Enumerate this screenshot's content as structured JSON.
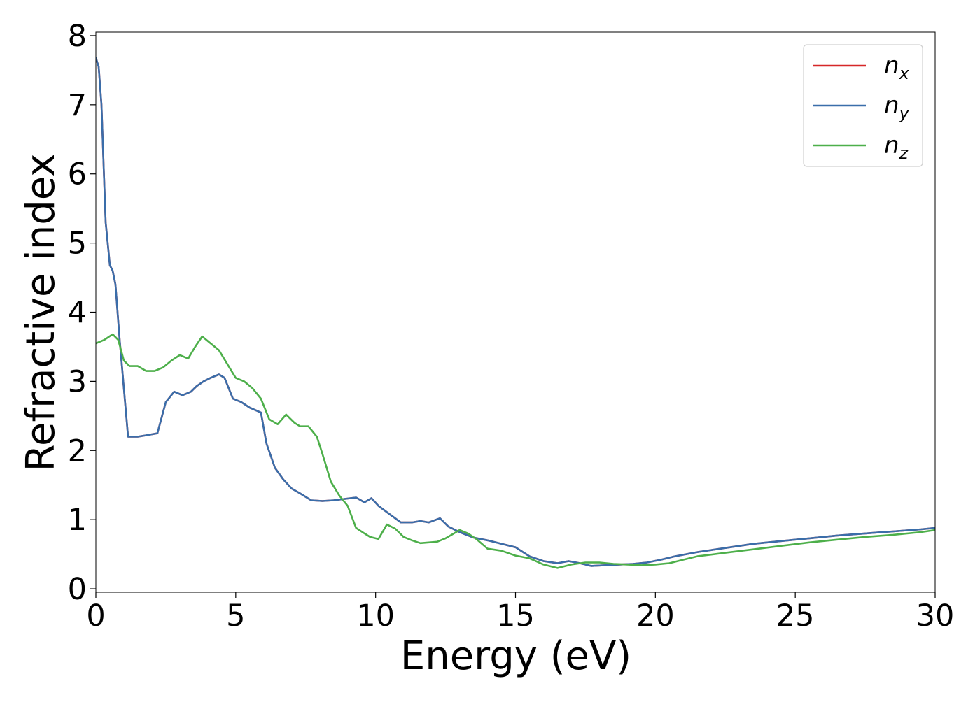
{
  "chart_data": {
    "type": "line",
    "xlabel": "Energy (eV)",
    "ylabel": "Refractive index",
    "xlim": [
      0,
      30
    ],
    "ylim": [
      -0.05,
      8.05
    ],
    "xticks": [
      0,
      5,
      10,
      15,
      20,
      25,
      30
    ],
    "yticks": [
      0,
      1,
      2,
      3,
      4,
      5,
      6,
      7,
      8
    ],
    "xtick_labels": [
      "0",
      "5",
      "10",
      "15",
      "20",
      "25",
      "30"
    ],
    "ytick_labels": [
      "0",
      "1",
      "2",
      "3",
      "4",
      "5",
      "6",
      "7",
      "8"
    ],
    "grid": false,
    "legend_position": "top-right",
    "series": [
      {
        "name": "n_x",
        "legend_base": "n",
        "legend_sub": "x",
        "color": "#d62728",
        "x": [
          0,
          0.1,
          0.2,
          0.35,
          0.5,
          0.6,
          0.7,
          0.85,
          1.0,
          1.15,
          1.3,
          1.5,
          1.8,
          2.2,
          2.5,
          2.8,
          3.1,
          3.4,
          3.6,
          3.85,
          4.1,
          4.4,
          4.6,
          4.9,
          5.2,
          5.5,
          5.9,
          6.1,
          6.4,
          6.7,
          7.0,
          7.3,
          7.7,
          8.1,
          8.5,
          8.9,
          9.3,
          9.6,
          9.85,
          10.1,
          10.5,
          10.9,
          11.3,
          11.6,
          11.9,
          12.3,
          12.6,
          13.0,
          13.5,
          14.0,
          14.5,
          15.0,
          15.5,
          16.0,
          16.5,
          16.9,
          17.3,
          17.7,
          18.2,
          18.7,
          19.2,
          19.7,
          20.2,
          20.7,
          21.5,
          22.5,
          23.5,
          24.5,
          25.5,
          26.5,
          27.5,
          28.5,
          29.5,
          30
        ],
        "y": [
          7.68,
          7.55,
          7.0,
          5.3,
          4.68,
          4.6,
          4.4,
          3.6,
          2.9,
          2.2,
          2.2,
          2.2,
          2.22,
          2.25,
          2.7,
          2.85,
          2.8,
          2.85,
          2.93,
          3.0,
          3.05,
          3.1,
          3.05,
          2.75,
          2.7,
          2.62,
          2.55,
          2.1,
          1.75,
          1.58,
          1.45,
          1.38,
          1.28,
          1.27,
          1.28,
          1.3,
          1.32,
          1.25,
          1.31,
          1.2,
          1.08,
          0.96,
          0.96,
          0.98,
          0.96,
          1.02,
          0.9,
          0.82,
          0.74,
          0.7,
          0.65,
          0.6,
          0.47,
          0.4,
          0.37,
          0.4,
          0.37,
          0.33,
          0.34,
          0.35,
          0.36,
          0.38,
          0.42,
          0.47,
          0.53,
          0.59,
          0.65,
          0.69,
          0.73,
          0.77,
          0.8,
          0.83,
          0.86,
          0.88
        ]
      },
      {
        "name": "n_y",
        "legend_base": "n",
        "legend_sub": "y",
        "color": "#3a6eaa",
        "x": [
          0,
          0.1,
          0.2,
          0.35,
          0.5,
          0.6,
          0.7,
          0.85,
          1.0,
          1.15,
          1.3,
          1.5,
          1.8,
          2.2,
          2.5,
          2.8,
          3.1,
          3.4,
          3.6,
          3.85,
          4.1,
          4.4,
          4.6,
          4.9,
          5.2,
          5.5,
          5.9,
          6.1,
          6.4,
          6.7,
          7.0,
          7.3,
          7.7,
          8.1,
          8.5,
          8.9,
          9.3,
          9.6,
          9.85,
          10.1,
          10.5,
          10.9,
          11.3,
          11.6,
          11.9,
          12.3,
          12.6,
          13.0,
          13.5,
          14.0,
          14.5,
          15.0,
          15.5,
          16.0,
          16.5,
          16.9,
          17.3,
          17.7,
          18.2,
          18.7,
          19.2,
          19.7,
          20.2,
          20.7,
          21.5,
          22.5,
          23.5,
          24.5,
          25.5,
          26.5,
          27.5,
          28.5,
          29.5,
          30
        ],
        "y": [
          7.68,
          7.55,
          7.0,
          5.3,
          4.68,
          4.6,
          4.4,
          3.6,
          2.9,
          2.2,
          2.2,
          2.2,
          2.22,
          2.25,
          2.7,
          2.85,
          2.8,
          2.85,
          2.93,
          3.0,
          3.05,
          3.1,
          3.05,
          2.75,
          2.7,
          2.62,
          2.55,
          2.1,
          1.75,
          1.58,
          1.45,
          1.38,
          1.28,
          1.27,
          1.28,
          1.3,
          1.32,
          1.25,
          1.31,
          1.2,
          1.08,
          0.96,
          0.96,
          0.98,
          0.96,
          1.02,
          0.9,
          0.82,
          0.74,
          0.7,
          0.65,
          0.6,
          0.47,
          0.4,
          0.37,
          0.4,
          0.37,
          0.33,
          0.34,
          0.35,
          0.36,
          0.38,
          0.42,
          0.47,
          0.53,
          0.59,
          0.65,
          0.69,
          0.73,
          0.77,
          0.8,
          0.83,
          0.86,
          0.88
        ]
      },
      {
        "name": "n_z",
        "legend_base": "n",
        "legend_sub": "z",
        "color": "#4daf4a",
        "x": [
          0,
          0.3,
          0.6,
          0.8,
          1.0,
          1.2,
          1.5,
          1.8,
          2.1,
          2.4,
          2.7,
          3.0,
          3.3,
          3.55,
          3.8,
          4.1,
          4.4,
          4.7,
          5.0,
          5.3,
          5.6,
          5.9,
          6.2,
          6.5,
          6.8,
          7.1,
          7.3,
          7.6,
          7.9,
          8.1,
          8.4,
          8.7,
          9.0,
          9.3,
          9.6,
          9.8,
          10.1,
          10.4,
          10.7,
          11.0,
          11.3,
          11.6,
          11.9,
          12.2,
          12.5,
          12.8,
          13.0,
          13.3,
          13.6,
          14.0,
          14.5,
          15.0,
          15.5,
          16.0,
          16.5,
          17.0,
          17.5,
          18.0,
          18.5,
          19.0,
          19.5,
          20.0,
          20.5,
          21.0,
          21.5,
          22.5,
          23.5,
          24.5,
          25.5,
          26.5,
          27.5,
          28.5,
          29.5,
          30
        ],
        "y": [
          3.55,
          3.6,
          3.68,
          3.6,
          3.3,
          3.22,
          3.22,
          3.15,
          3.15,
          3.2,
          3.3,
          3.38,
          3.33,
          3.5,
          3.65,
          3.55,
          3.45,
          3.25,
          3.05,
          3.0,
          2.9,
          2.75,
          2.45,
          2.38,
          2.52,
          2.4,
          2.35,
          2.35,
          2.2,
          1.95,
          1.55,
          1.35,
          1.2,
          0.88,
          0.8,
          0.75,
          0.72,
          0.93,
          0.87,
          0.75,
          0.7,
          0.66,
          0.67,
          0.68,
          0.73,
          0.8,
          0.85,
          0.8,
          0.72,
          0.58,
          0.55,
          0.48,
          0.44,
          0.35,
          0.3,
          0.35,
          0.38,
          0.38,
          0.36,
          0.35,
          0.34,
          0.35,
          0.37,
          0.42,
          0.47,
          0.52,
          0.57,
          0.62,
          0.67,
          0.71,
          0.75,
          0.78,
          0.82,
          0.85
        ]
      }
    ]
  }
}
